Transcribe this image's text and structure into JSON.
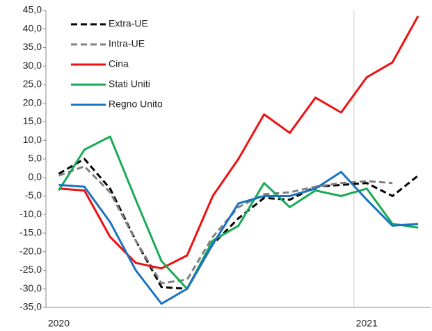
{
  "chart_data": {
    "type": "line",
    "categories": [
      "2020",
      null,
      null,
      null,
      null,
      null,
      null,
      null,
      null,
      null,
      null,
      null,
      "2021",
      null,
      null
    ],
    "series": [
      {
        "name": "Extra-UE",
        "color": "#000000",
        "dashed": true,
        "values": [
          1.0,
          5.0,
          -3.0,
          -17.0,
          -29.5,
          -30.0,
          -18.0,
          -11.0,
          -5.5,
          -6.0,
          -2.5,
          -2.0,
          -1.5,
          -5.0,
          0.5
        ]
      },
      {
        "name": "Intra-UE",
        "color": "#808080",
        "dashed": true,
        "values": [
          0.5,
          3.0,
          -4.0,
          -17.0,
          -28.5,
          -27.5,
          -16.0,
          -8.0,
          -4.5,
          -4.0,
          -2.5,
          -1.5,
          -1.0,
          -1.5,
          null
        ]
      },
      {
        "name": "Cina",
        "color": "#ee1111",
        "dashed": false,
        "values": [
          -3.0,
          -3.5,
          -16.0,
          -23.0,
          -24.5,
          -21.0,
          -5.0,
          5.0,
          17.0,
          12.0,
          21.5,
          17.5,
          27.0,
          31.0,
          43.5
        ]
      },
      {
        "name": "Stati Uniti",
        "color": "#1aaa55",
        "dashed": false,
        "values": [
          -3.5,
          7.5,
          11.0,
          -6.0,
          -22.5,
          -30.0,
          -17.0,
          -13.0,
          -1.5,
          -8.0,
          -3.5,
          -5.0,
          -3.0,
          -12.5,
          -13.5
        ]
      },
      {
        "name": "Regno Unito",
        "color": "#1a73c0",
        "dashed": false,
        "values": [
          -2.0,
          -2.5,
          -12.0,
          -25.0,
          -34.0,
          -30.0,
          -18.0,
          -7.0,
          -5.0,
          -5.0,
          -3.0,
          1.5,
          -6.0,
          -13.0,
          -12.5
        ]
      }
    ],
    "ylim": [
      -35,
      45
    ],
    "yticks": [
      {
        "value": 45,
        "label": "45,0"
      },
      {
        "value": 40,
        "label": "40,0"
      },
      {
        "value": 35,
        "label": "35,0"
      },
      {
        "value": 30,
        "label": "30,0"
      },
      {
        "value": 25,
        "label": "25,0"
      },
      {
        "value": 20,
        "label": "20,0"
      },
      {
        "value": 15,
        "label": "15,0"
      },
      {
        "value": 10,
        "label": "10,0"
      },
      {
        "value": 5,
        "label": "5,0"
      },
      {
        "value": 0,
        "label": "0,0"
      },
      {
        "value": -5,
        "label": "-5,0"
      },
      {
        "value": -10,
        "label": "-10,0"
      },
      {
        "value": -15,
        "label": "-15,0"
      },
      {
        "value": -20,
        "label": "-20,0"
      },
      {
        "value": -25,
        "label": "-25,0"
      },
      {
        "value": -30,
        "label": "-30,0"
      },
      {
        "value": -35,
        "label": "-35,0"
      }
    ],
    "legend": "upper left"
  }
}
